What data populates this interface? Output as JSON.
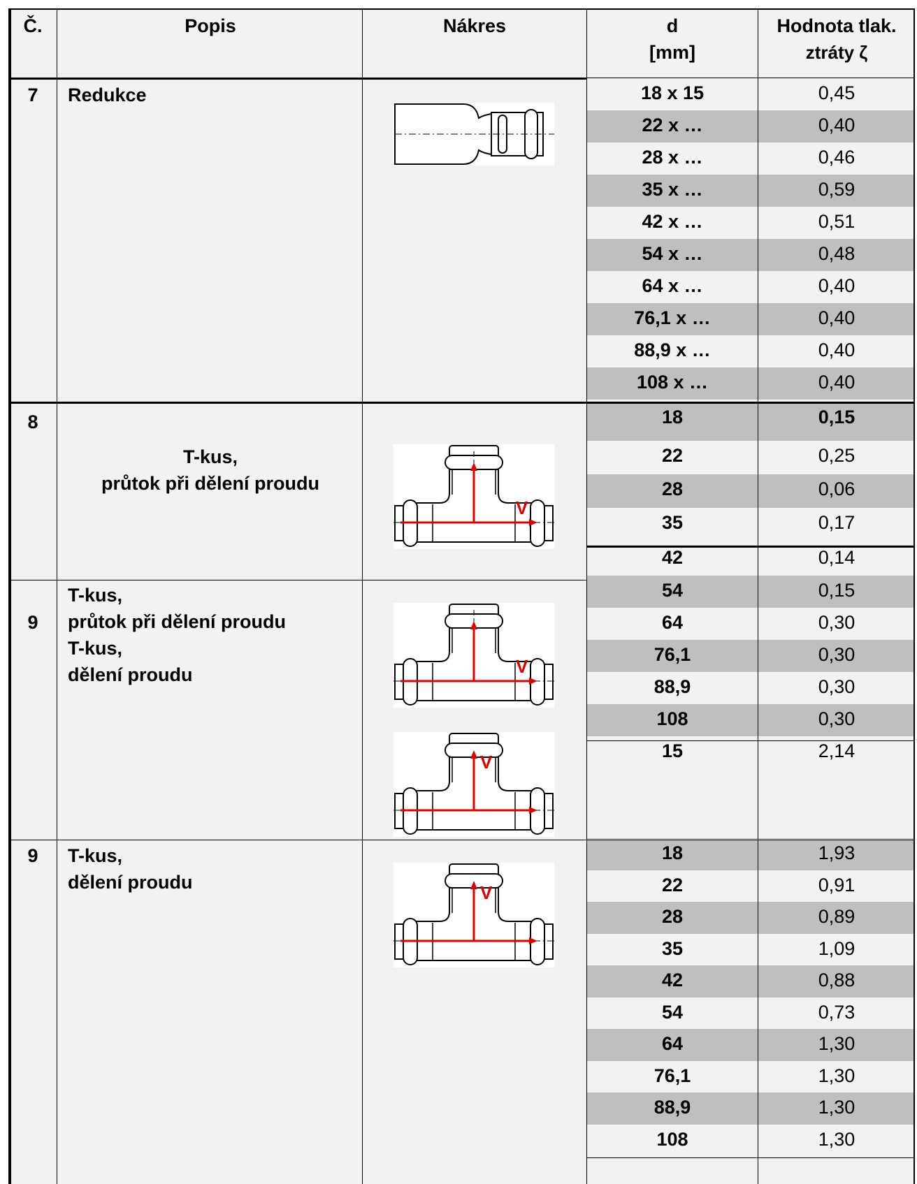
{
  "headers": {
    "no": "Č.",
    "desc": "Popis",
    "drawing": "Nákres",
    "d_line1": "d",
    "d_line2": "[mm]",
    "val_line1": "Hodnota tlak.",
    "val_line2": "ztráty ζ"
  },
  "sections": [
    {
      "no": "7",
      "desc_lines": [
        "Redukce"
      ],
      "rows": [
        {
          "d": "18 x 15",
          "v": "0,45"
        },
        {
          "d": "22 x …",
          "v": "0,40"
        },
        {
          "d": "28 x …",
          "v": "0,46"
        },
        {
          "d": "35 x …",
          "v": "0,59"
        },
        {
          "d": "42 x …",
          "v": "0,51"
        },
        {
          "d": "54 x …",
          "v": "0,48"
        },
        {
          "d": "64 x …",
          "v": "0,40"
        },
        {
          "d": "76,1 x …",
          "v": "0,40"
        },
        {
          "d": "88,9 x …",
          "v": "0,40"
        },
        {
          "d": "108 x …",
          "v": "0,40"
        }
      ]
    },
    {
      "no": "8",
      "desc_lines": [
        "T-kus,",
        "průtok při dělení proudu"
      ],
      "rows": [
        {
          "d": "18",
          "v": "0,15"
        },
        {
          "d": "22",
          "v": "0,25"
        },
        {
          "d": "28",
          "v": "0,06"
        },
        {
          "d": "35",
          "v": "0,17"
        },
        {
          "d": "42",
          "v": "0,14"
        }
      ]
    },
    {
      "no": "9",
      "desc_lines": [
        "T-kus,",
        "průtok při dělení proudu",
        "T-kus,",
        "dělení proudu"
      ],
      "rows": [
        {
          "d": "54",
          "v": "0,15"
        },
        {
          "d": "64",
          "v": "0,30"
        },
        {
          "d": "76,1",
          "v": "0,30"
        },
        {
          "d": "88,9",
          "v": "0,30"
        },
        {
          "d": "108",
          "v": "0,30"
        },
        {
          "d": "15",
          "v": "2,14"
        }
      ]
    },
    {
      "no": "9",
      "desc_lines": [
        "T-kus,",
        "dělení proudu"
      ],
      "rows": [
        {
          "d": "18",
          "v": "1,93"
        },
        {
          "d": "22",
          "v": "0,91"
        },
        {
          "d": "28",
          "v": "0,89"
        },
        {
          "d": "35",
          "v": "1,09"
        },
        {
          "d": "42",
          "v": "0,88"
        },
        {
          "d": "54",
          "v": "0,73"
        },
        {
          "d": "64",
          "v": "1,30"
        },
        {
          "d": "76,1",
          "v": "1,30"
        },
        {
          "d": "88,9",
          "v": "1,30"
        },
        {
          "d": "108",
          "v": "1,30"
        }
      ]
    }
  ],
  "drawing_labels": {
    "flow_symbol": "V"
  },
  "colors": {
    "row_shade": "#bfbfbf",
    "cell_bg": "#f2f2f2",
    "arrow": "#e00000"
  }
}
